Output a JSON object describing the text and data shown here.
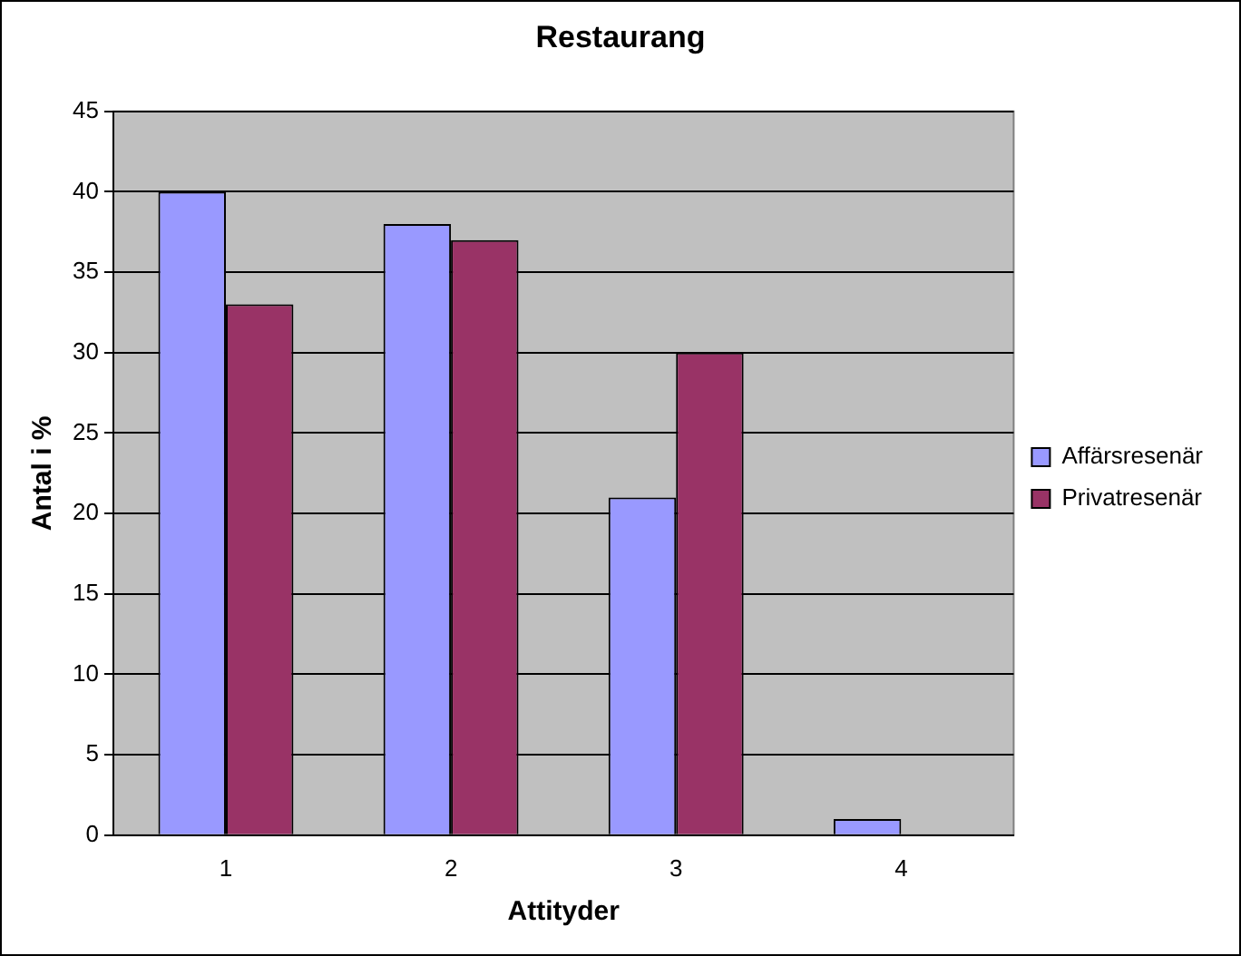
{
  "chart_data": {
    "type": "bar",
    "title": "Restaurang",
    "xlabel": "Attityder",
    "ylabel": "Antal i %",
    "categories": [
      "1",
      "2",
      "3",
      "4"
    ],
    "series": [
      {
        "name": "Affärsresenär",
        "color": "#9999ff",
        "values": [
          40,
          38,
          21,
          1
        ]
      },
      {
        "name": "Privatresenär",
        "color": "#993366",
        "values": [
          33,
          37,
          30,
          0
        ]
      }
    ],
    "ylim": [
      0,
      45
    ],
    "yticks": [
      0,
      5,
      10,
      15,
      20,
      25,
      30,
      35,
      40,
      45
    ],
    "grid": "y",
    "legend": "right"
  }
}
